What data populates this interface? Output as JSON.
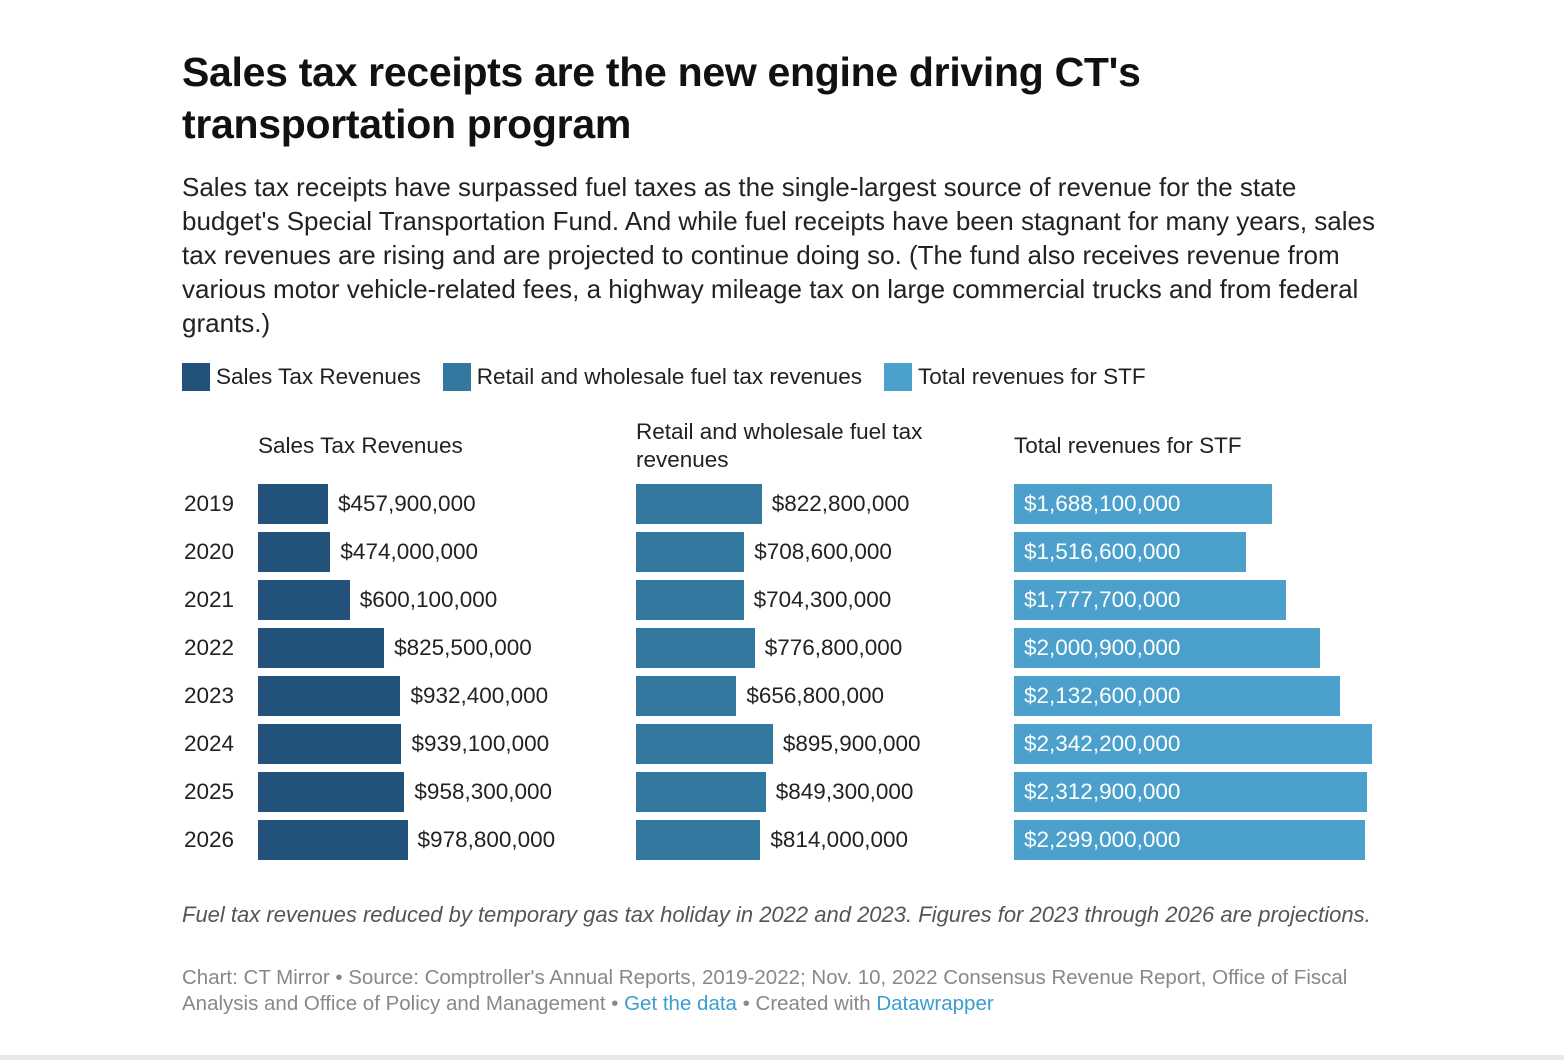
{
  "title": "Sales tax receipts are the new engine driving CT's transportation program",
  "description": "Sales tax receipts have surpassed fuel taxes as the single-largest source of revenue for the state budget's Special Transportation Fund. And while fuel receipts have been stagnant for many years, sales tax revenues are rising and are projected to continue doing so. (The fund also receives revenue from various motor vehicle-related fees, a highway mileage tax on large commercial trucks and from federal grants.)",
  "legend": [
    {
      "label": "Sales Tax Revenues",
      "color": "#22527a"
    },
    {
      "label": "Retail and wholesale fuel tax revenues",
      "color": "#33789f"
    },
    {
      "label": "Total revenues for STF",
      "color": "#4ba1cb"
    }
  ],
  "chart_data": {
    "type": "bar",
    "orientation": "horizontal",
    "layout": "small-multiples",
    "categories": [
      "2019",
      "2020",
      "2021",
      "2022",
      "2023",
      "2024",
      "2025",
      "2026"
    ],
    "series": [
      {
        "name": "Sales Tax Revenues",
        "color": "#22527a",
        "labels": [
          "$457,900,000",
          "$474,000,000",
          "$600,100,000",
          "$825,500,000",
          "$932,400,000",
          "$939,100,000",
          "$958,300,000",
          "$978,800,000"
        ],
        "values": [
          457900000,
          474000000,
          600100000,
          825500000,
          932400000,
          939100000,
          958300000,
          978800000
        ]
      },
      {
        "name": "Retail and wholesale fuel tax revenues",
        "color": "#33789f",
        "labels": [
          "$822,800,000",
          "$708,600,000",
          "$704,300,000",
          "$776,800,000",
          "$656,800,000",
          "$895,900,000",
          "$849,300,000",
          "$814,000,000"
        ],
        "values": [
          822800000,
          708600000,
          704300000,
          776800000,
          656800000,
          895900000,
          849300000,
          814000000
        ]
      },
      {
        "name": "Total revenues for STF",
        "color": "#4ba1cb",
        "labels": [
          "$1,688,100,000",
          "$1,516,600,000",
          "$1,777,700,000",
          "$2,000,900,000",
          "$2,132,600,000",
          "$2,342,200,000",
          "$2,312,900,000",
          "$2,299,000,000"
        ],
        "values": [
          1688100000,
          1516600000,
          1777700000,
          2000900000,
          2132600000,
          2342200000,
          2312900000,
          2299000000
        ]
      }
    ]
  },
  "note": "Fuel tax revenues reduced by temporary gas tax holiday in 2022 and 2023. Figures for 2023 through 2026 are projections.",
  "footer": {
    "source": "Chart: CT Mirror • Source: Comptroller's Annual Reports, 2019-2022; Nov. 10, 2022 Consensus Revenue Report, Office of Fiscal Analysis and Office of Policy and Management",
    "sep1": " • ",
    "get_data": "Get the data",
    "sep2": " • Created with ",
    "datawrapper": "Datawrapper",
    "link_color": "#3a9dd0"
  }
}
